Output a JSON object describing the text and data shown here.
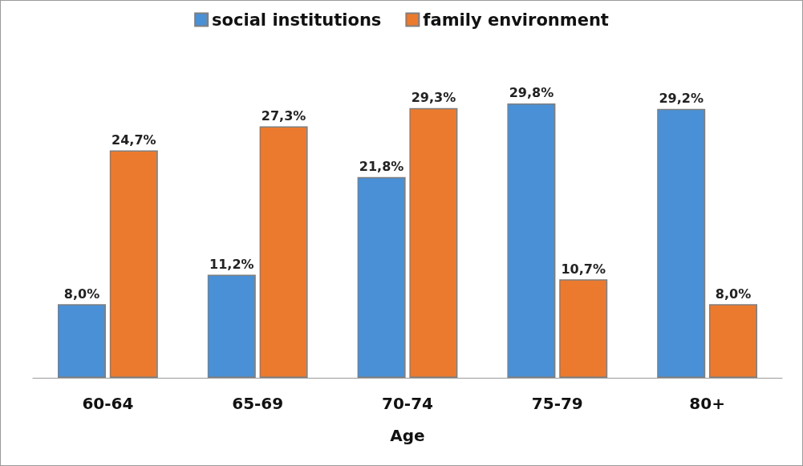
{
  "chart_data": {
    "type": "bar",
    "xlabel": "Age",
    "categories": [
      "60-64",
      "65-69",
      "70-74",
      "75-79",
      "80+"
    ],
    "series": [
      {
        "name": "social institutions",
        "color": "#4a90d6",
        "values": [
          8.0,
          11.2,
          21.8,
          29.8,
          29.2
        ],
        "value_labels": [
          "8,0%",
          "11,2%",
          "21,8%",
          "29,8%",
          "29,2%"
        ]
      },
      {
        "name": "family environment",
        "color": "#ec7a2e",
        "values": [
          24.7,
          27.3,
          29.3,
          10.7,
          8.0
        ],
        "value_labels": [
          "24,7%",
          "27,3%",
          "29,3%",
          "10,7%",
          "8,0%"
        ]
      }
    ],
    "legend": "top",
    "grid": false
  }
}
